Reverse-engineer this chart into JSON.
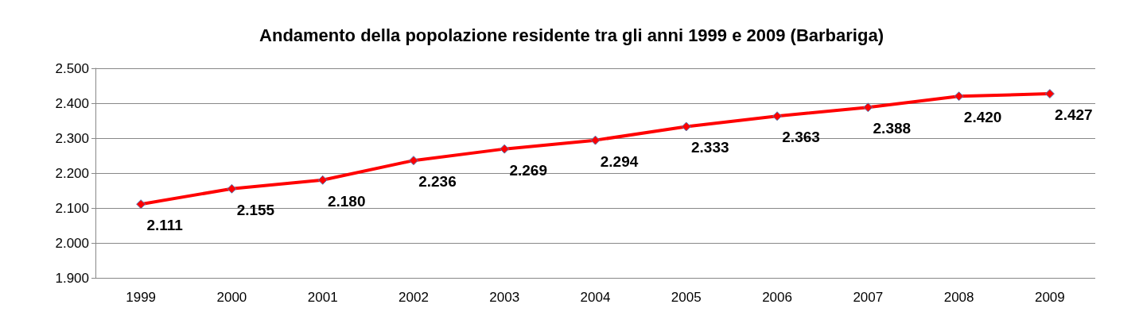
{
  "chart_data": {
    "type": "line",
    "title": "Andamento della popolazione residente tra gli anni 1999 e 2009 (Barbariga)",
    "categories": [
      "1999",
      "2000",
      "2001",
      "2002",
      "2003",
      "2004",
      "2005",
      "2006",
      "2007",
      "2008",
      "2009"
    ],
    "series": [
      {
        "color": "#ff0000",
        "values": [
          2111,
          2155,
          2180,
          2236,
          2269,
          2294,
          2333,
          2363,
          2388,
          2420,
          2427
        ],
        "value_labels": [
          "2.111",
          "2.155",
          "2.180",
          "2.236",
          "2.269",
          "2.294",
          "2.333",
          "2.363",
          "2.388",
          "2.420",
          "2.427"
        ]
      }
    ],
    "ylim": [
      1900,
      2500
    ],
    "yticks": [
      {
        "value": 1900,
        "label": "1.900"
      },
      {
        "value": 2000,
        "label": "2.000"
      },
      {
        "value": 2100,
        "label": "2.100"
      },
      {
        "value": 2200,
        "label": "2.200"
      },
      {
        "value": 2300,
        "label": "2.300"
      },
      {
        "value": 2400,
        "label": "2.400"
      },
      {
        "value": 2500,
        "label": "2.500"
      }
    ],
    "grid": "y",
    "marker": "diamond",
    "line_style": "solid"
  }
}
